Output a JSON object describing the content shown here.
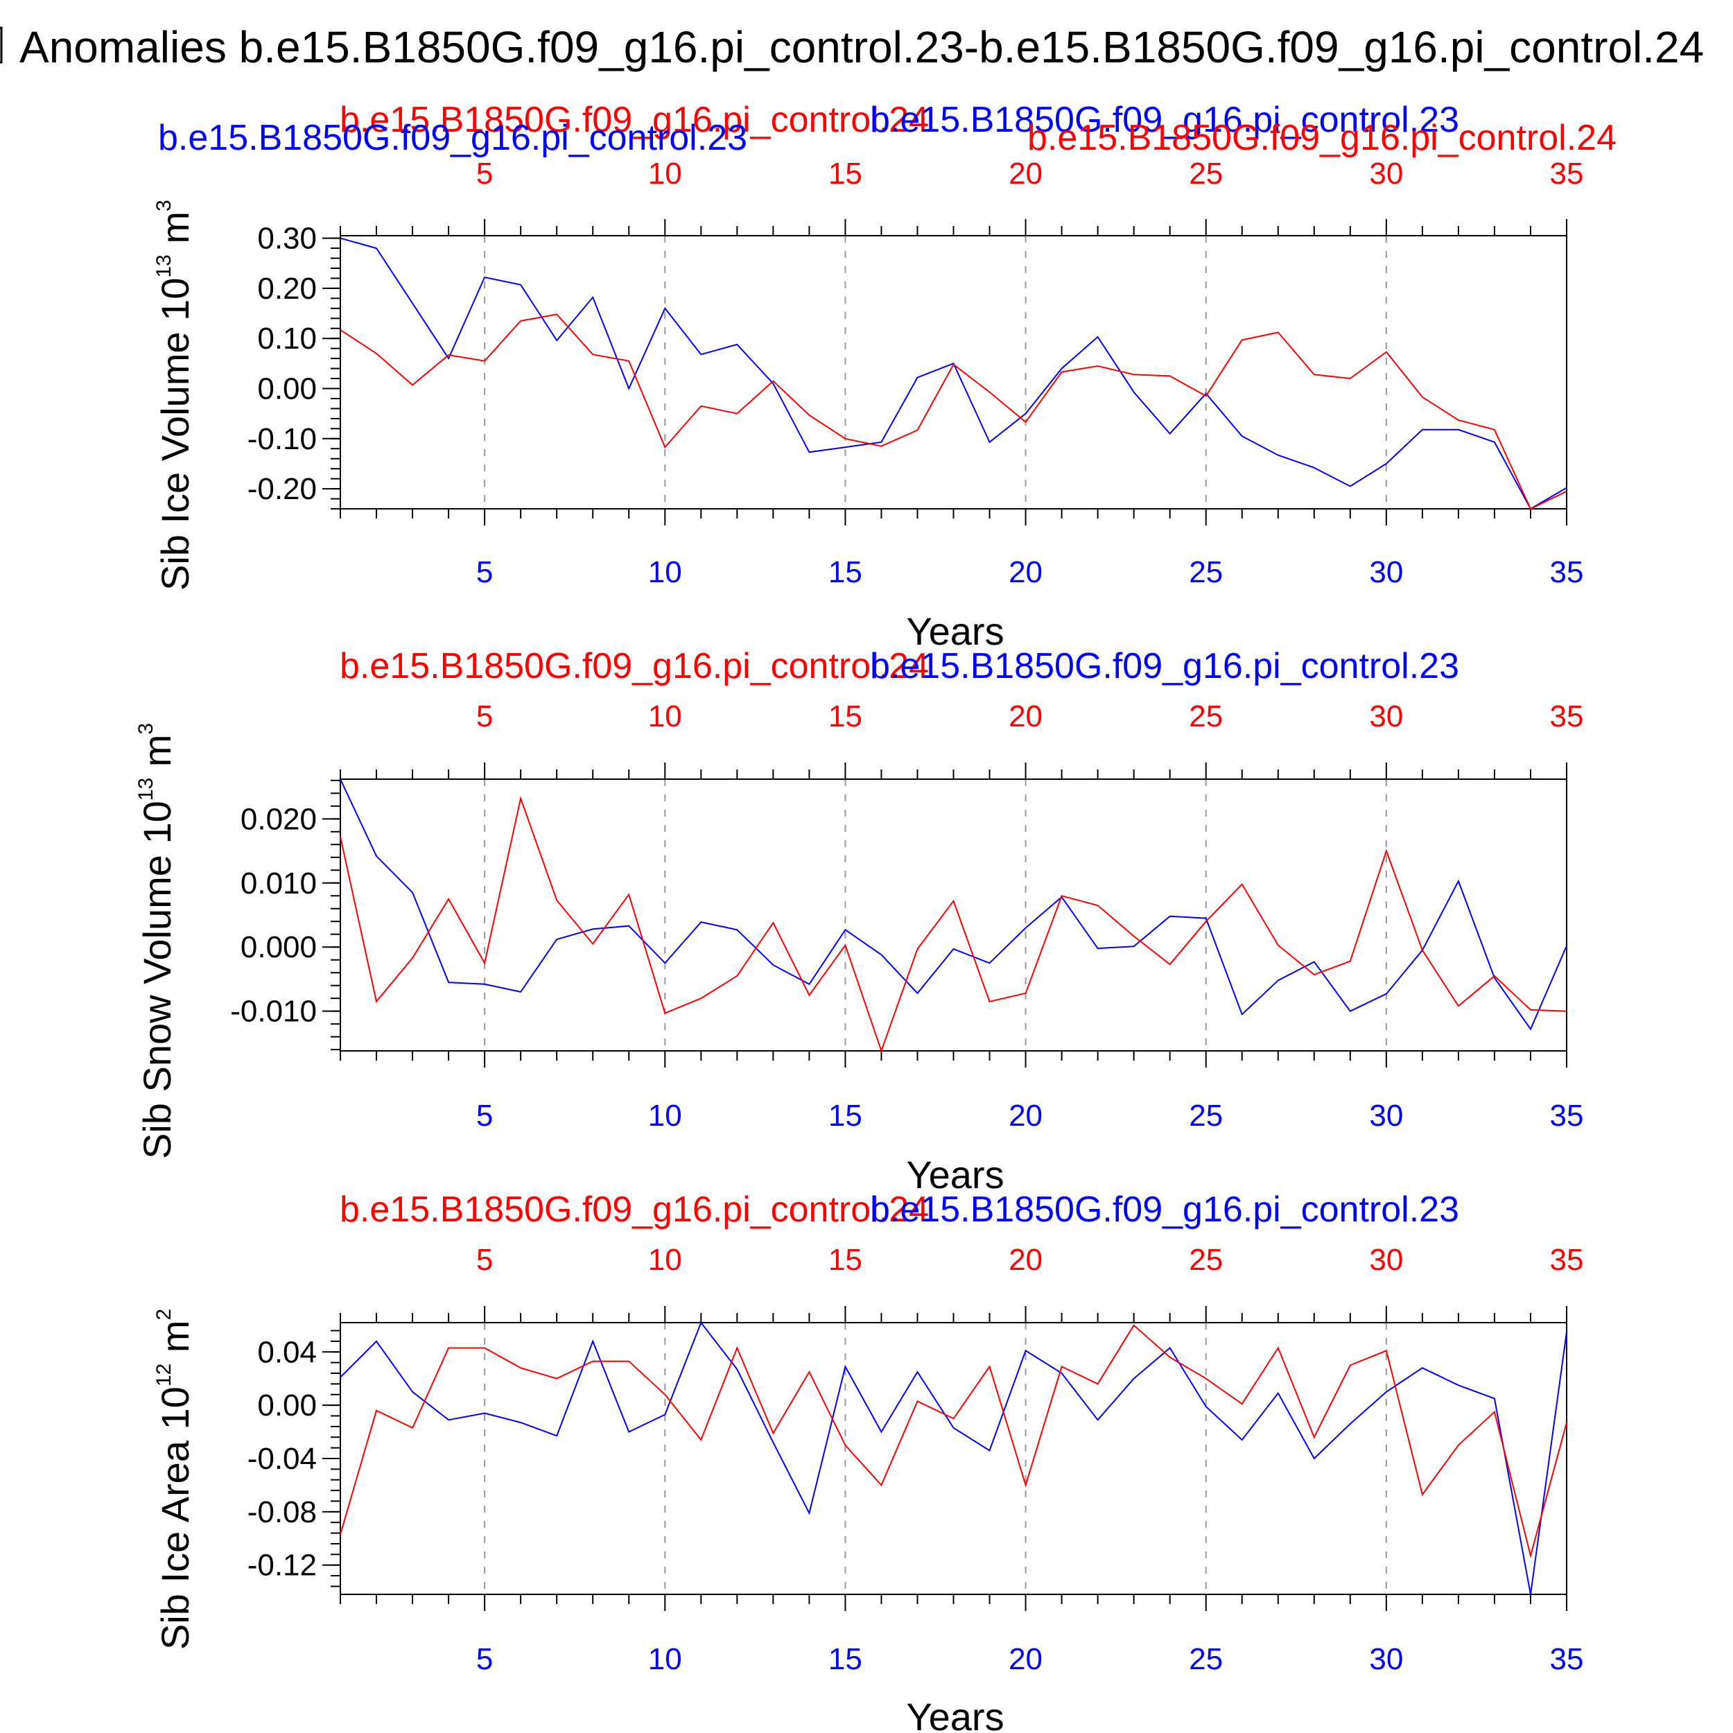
{
  "title": "Anomalies b.e15.B1850G.f09_g16.pi_control.23-b.e15.B1850G.f09_g16.pi_control.24",
  "colors": {
    "series_a": "#0000ff",
    "series_b": "#ff0000",
    "axis": "#000000",
    "grid": "#999999"
  },
  "chart_data": [
    {
      "type": "line",
      "ylabel": "Sib Ice Volume",
      "ylabel_unit_base": "10",
      "ylabel_unit_exp": "13",
      "ylabel_unit_tail": "m",
      "ylabel_unit_tail_exp": "3",
      "xlabel": "Years",
      "top_run_labels": {
        "red": "b.e15.B1850G.f09_g16.pi_control.24",
        "blue": "b.e15.B1850G.f09_g16.pi_control.23"
      },
      "extra_run_labels": {
        "blue": "b.e15.B1850G.f09_g16.pi_control.23",
        "red": "b.e15.B1850G.f09_g16.pi_control.24"
      },
      "xlim": [
        1,
        35
      ],
      "ylim": [
        -0.24,
        0.305
      ],
      "x_ticks": [
        5,
        10,
        15,
        20,
        25,
        30,
        35
      ],
      "x_tick_labels": [
        "5",
        "10",
        "15",
        "20",
        "25",
        "30",
        "35"
      ],
      "y_ticks": [
        0.3,
        0.2,
        0.1,
        0.0,
        -0.1,
        -0.2
      ],
      "y_tick_labels": [
        "0.30",
        "0.20",
        "0.10",
        "0.00",
        "-0.10",
        "-0.20"
      ],
      "y_minor_step": 0.02,
      "x": [
        1,
        2,
        3,
        4,
        5,
        6,
        7,
        8,
        9,
        10,
        11,
        12,
        13,
        14,
        15,
        16,
        17,
        18,
        19,
        20,
        21,
        22,
        23,
        24,
        25,
        26,
        27,
        28,
        29,
        30,
        31,
        32,
        33,
        34,
        35
      ],
      "series": [
        {
          "name": "b.e15.B1850G.f09_g16.pi_control.23",
          "color": "blue",
          "values": [
            0.3,
            0.28,
            0.17,
            0.06,
            0.222,
            0.207,
            0.096,
            0.182,
            0.0,
            0.16,
            0.068,
            0.088,
            0.01,
            -0.127,
            -0.117,
            -0.107,
            0.022,
            0.05,
            -0.107,
            -0.05,
            0.04,
            0.103,
            -0.007,
            -0.09,
            -0.01,
            -0.095,
            -0.133,
            -0.158,
            -0.195,
            -0.15,
            -0.082,
            -0.082,
            -0.107,
            -0.24,
            -0.198
          ]
        },
        {
          "name": "b.e15.B1850G.f09_g16.pi_control.24",
          "color": "red",
          "values": [
            0.117,
            0.07,
            0.007,
            0.067,
            0.055,
            0.135,
            0.148,
            0.068,
            0.055,
            -0.117,
            -0.035,
            -0.05,
            0.015,
            -0.053,
            -0.1,
            -0.115,
            -0.083,
            0.048,
            -0.007,
            -0.067,
            0.033,
            0.045,
            0.028,
            0.025,
            -0.015,
            0.097,
            0.112,
            0.028,
            0.02,
            0.073,
            -0.017,
            -0.063,
            -0.082,
            -0.24,
            -0.205
          ]
        }
      ]
    },
    {
      "type": "line",
      "ylabel": "Sib Snow Volume",
      "ylabel_unit_base": "10",
      "ylabel_unit_exp": "13",
      "ylabel_unit_tail": "m",
      "ylabel_unit_tail_exp": "3",
      "xlabel": "Years",
      "top_run_labels": {
        "red": "b.e15.B1850G.f09_g16.pi_control.24",
        "blue": "b.e15.B1850G.f09_g16.pi_control.23"
      },
      "xlim": [
        1,
        35
      ],
      "ylim": [
        -0.0162,
        0.0262
      ],
      "x_ticks": [
        5,
        10,
        15,
        20,
        25,
        30,
        35
      ],
      "x_tick_labels": [
        "5",
        "10",
        "15",
        "20",
        "25",
        "30",
        "35"
      ],
      "y_ticks": [
        0.02,
        0.01,
        0.0,
        -0.01
      ],
      "y_tick_labels": [
        "0.020",
        "0.010",
        "0.000",
        "-0.010"
      ],
      "y_minor_step": 0.002,
      "x": [
        1,
        2,
        3,
        4,
        5,
        6,
        7,
        8,
        9,
        10,
        11,
        12,
        13,
        14,
        15,
        16,
        17,
        18,
        19,
        20,
        21,
        22,
        23,
        24,
        25,
        26,
        27,
        28,
        29,
        30,
        31,
        32,
        33,
        34,
        35
      ],
      "series": [
        {
          "name": "b.e15.B1850G.f09_g16.pi_control.23",
          "color": "blue",
          "values": [
            0.0262,
            0.0142,
            0.0085,
            -0.0055,
            -0.0058,
            -0.007,
            0.0012,
            0.0028,
            0.0033,
            -0.0025,
            0.0039,
            0.0027,
            -0.0028,
            -0.0058,
            0.0027,
            -0.0012,
            -0.0072,
            -0.0003,
            -0.0025,
            0.003,
            0.0078,
            -0.0002,
            0.0001,
            0.0048,
            0.0045,
            -0.0105,
            -0.0052,
            -0.0023,
            -0.01,
            -0.0073,
            -0.0005,
            0.0103,
            -0.0048,
            -0.0128,
            0.0002
          ]
        },
        {
          "name": "b.e15.B1850G.f09_g16.pi_control.24",
          "color": "red",
          "values": [
            0.0172,
            -0.0085,
            -0.0017,
            0.0075,
            -0.0025,
            0.0232,
            0.0073,
            0.0005,
            0.0082,
            -0.0103,
            -0.008,
            -0.0045,
            0.0038,
            -0.0075,
            0.0003,
            -0.0162,
            -0.0003,
            0.0072,
            -0.0085,
            -0.0072,
            0.008,
            0.0065,
            0.0017,
            -0.0027,
            0.004,
            0.0098,
            0.0003,
            -0.0043,
            -0.0022,
            0.015,
            -0.0005,
            -0.0092,
            -0.0045,
            -0.0098,
            -0.01
          ]
        }
      ]
    },
    {
      "type": "line",
      "ylabel": "Sib Ice Area",
      "ylabel_unit_base": "10",
      "ylabel_unit_exp": "12",
      "ylabel_unit_tail": "m",
      "ylabel_unit_tail_exp": "2",
      "xlabel": "Years",
      "top_run_labels": {
        "red": "b.e15.B1850G.f09_g16.pi_control.24",
        "blue": "b.e15.B1850G.f09_g16.pi_control.23"
      },
      "xlim": [
        1,
        35
      ],
      "ylim": [
        -0.142,
        0.062
      ],
      "x_ticks": [
        5,
        10,
        15,
        20,
        25,
        30,
        35
      ],
      "x_tick_labels": [
        "5",
        "10",
        "15",
        "20",
        "25",
        "30",
        "35"
      ],
      "y_ticks": [
        0.04,
        0.0,
        -0.04,
        -0.08,
        -0.12
      ],
      "y_tick_labels": [
        "0.04",
        "0.00",
        "-0.04",
        "-0.08",
        "-0.12"
      ],
      "y_minor_step": 0.008,
      "x": [
        1,
        2,
        3,
        4,
        5,
        6,
        7,
        8,
        9,
        10,
        11,
        12,
        13,
        14,
        15,
        16,
        17,
        18,
        19,
        20,
        21,
        22,
        23,
        24,
        25,
        26,
        27,
        28,
        29,
        30,
        31,
        32,
        33,
        34,
        35
      ],
      "series": [
        {
          "name": "b.e15.B1850G.f09_g16.pi_control.23",
          "color": "blue",
          "values": [
            0.021,
            0.048,
            0.01,
            -0.011,
            -0.006,
            -0.013,
            -0.023,
            0.048,
            -0.02,
            -0.007,
            0.062,
            0.027,
            -0.028,
            -0.081,
            0.029,
            -0.02,
            0.025,
            -0.017,
            -0.034,
            0.041,
            0.024,
            -0.011,
            0.02,
            0.043,
            -0.001,
            -0.026,
            0.009,
            -0.04,
            -0.014,
            0.01,
            0.028,
            0.015,
            0.005,
            -0.142,
            0.055
          ]
        },
        {
          "name": "b.e15.B1850G.f09_g16.pi_control.24",
          "color": "red",
          "values": [
            -0.097,
            -0.004,
            -0.017,
            0.043,
            0.043,
            0.028,
            0.02,
            0.033,
            0.033,
            0.008,
            -0.026,
            0.043,
            -0.021,
            0.025,
            -0.03,
            -0.06,
            0.003,
            -0.01,
            0.029,
            -0.06,
            0.029,
            0.016,
            0.06,
            0.036,
            0.02,
            0.001,
            0.043,
            -0.024,
            0.03,
            0.041,
            -0.067,
            -0.03,
            -0.005,
            -0.113,
            -0.013
          ]
        }
      ]
    }
  ]
}
